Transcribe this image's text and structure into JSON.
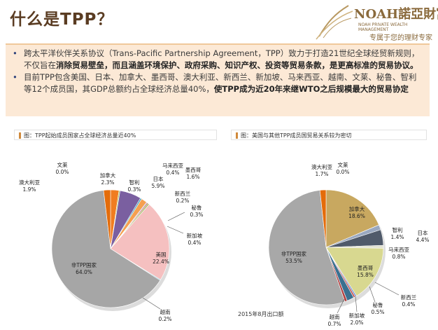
{
  "title": "什么是TPP？",
  "logo": {
    "brand": "NOAH諾亞財富",
    "sub": "NOAH PRIVATE WEALTH MANAGEMENT",
    "slogan": "专属于您的理财专家",
    "colors": {
      "brand": "#8a6a3c"
    }
  },
  "bullets": [
    {
      "parts": [
        {
          "text": "跨太平洋伙伴关系协议（Trans-Pacific Partnership Agreement，TPP）致力于打造21世纪全球经贸新规则，不仅旨在",
          "bold": false
        },
        {
          "text": "消除贸易壁垒，而且涵盖环境保护、政府采购、知识产权、投资等贸易条款，是更高标准的贸易协议。",
          "bold": true
        }
      ]
    },
    {
      "parts": [
        {
          "text": "目前TPP包含美国、日本、加拿大、墨西哥、澳大利亚、新西兰、新加坡、马来西亚、越南、文莱、秘鲁、智利等12个成员国，其GDP总额约占全球经济总量40%，",
          "bold": false
        },
        {
          "text": "使TPP成为近20年来继WTO之后规模最大的贸易协定",
          "bold": true
        }
      ]
    }
  ],
  "charts": {
    "left_caption": "图：TPP起始成员国家占全球经济总量近40%",
    "right_caption": "图：美国与其他TPP成员国贸易关系较为密切",
    "footnote": "2015年8月出口额"
  },
  "chart_data": [
    {
      "type": "pie",
      "title": "图：TPP起始成员国家占全球经济总量近40%",
      "slices": [
        {
          "label": "文莱",
          "value": 0.0,
          "pct": "0.0%",
          "color": "#4a6fb8"
        },
        {
          "label": "加拿大",
          "value": 2.3,
          "pct": "2.3%",
          "color": "#f07d20"
        },
        {
          "label": "智利",
          "value": 0.3,
          "pct": "0.3%",
          "color": "#a0c050"
        },
        {
          "label": "日本",
          "value": 5.9,
          "pct": "5.9%",
          "color": "#7a5fa0"
        },
        {
          "label": "马来西亚",
          "value": 0.4,
          "pct": "0.4%",
          "color": "#3fa0c0"
        },
        {
          "label": "墨西哥",
          "value": 1.6,
          "pct": "1.6%",
          "color": "#f5a050"
        },
        {
          "label": "新西兰",
          "value": 0.2,
          "pct": "0.2%",
          "color": "#6a8ad0"
        },
        {
          "label": "秘鲁",
          "value": 0.3,
          "pct": "0.3%",
          "color": "#c0504d"
        },
        {
          "label": "新加坡",
          "value": 0.4,
          "pct": "0.4%",
          "color": "#9bbb59"
        },
        {
          "label": "美国",
          "value": 22.4,
          "pct": "22.4%",
          "color": "#f5c0c0"
        },
        {
          "label": "越南",
          "value": 0.2,
          "pct": "0.2%",
          "color": "#4bacc6"
        },
        {
          "label": "非TPP国家",
          "value": 64.0,
          "pct": "64.0%",
          "color": "#a6a6a6"
        },
        {
          "label": "澳大利亚",
          "value": 1.9,
          "pct": "1.9%",
          "color": "#e46c0a"
        }
      ]
    },
    {
      "type": "pie",
      "title": "图：美国与其他TPP成员国贸易关系较为密切",
      "slices": [
        {
          "label": "文莱",
          "value": 0.0,
          "pct": "0.0%",
          "color": "#4a6fb8"
        },
        {
          "label": "加拿大",
          "value": 18.6,
          "pct": "18.6%",
          "color": "#c8a860"
        },
        {
          "label": "智利",
          "value": 1.4,
          "pct": "1.4%",
          "color": "#9aa8c0"
        },
        {
          "label": "日本",
          "value": 4.4,
          "pct": "4.4%",
          "color": "#505a6a"
        },
        {
          "label": "马来西亚",
          "value": 0.8,
          "pct": "0.8%",
          "color": "#e0e0d0"
        },
        {
          "label": "墨西哥",
          "value": 15.8,
          "pct": "15.8%",
          "color": "#d8d890"
        },
        {
          "label": "新西兰",
          "value": 0.4,
          "pct": "0.4%",
          "color": "#6a8ad0"
        },
        {
          "label": "秘鲁",
          "value": 0.5,
          "pct": "0.5%",
          "color": "#c0504d"
        },
        {
          "label": "新加坡",
          "value": 2.0,
          "pct": "2.0%",
          "color": "#3a7090"
        },
        {
          "label": "越南",
          "value": 0.7,
          "pct": "0.7%",
          "color": "#b04040"
        },
        {
          "label": "非TPP国家",
          "value": 53.5,
          "pct": "53.5%",
          "color": "#a8a8a8"
        },
        {
          "label": "澳大利亚",
          "value": 1.7,
          "pct": "1.7%",
          "color": "#e46c0a"
        }
      ]
    }
  ]
}
